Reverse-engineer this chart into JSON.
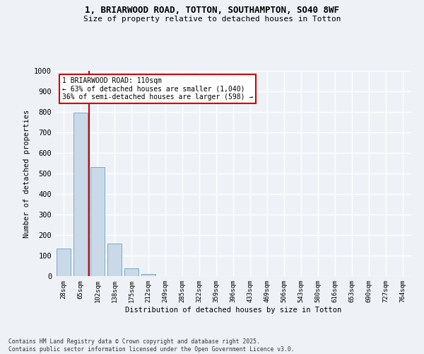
{
  "title_line1": "1, BRIARWOOD ROAD, TOTTON, SOUTHAMPTON, SO40 8WF",
  "title_line2": "Size of property relative to detached houses in Totton",
  "xlabel": "Distribution of detached houses by size in Totton",
  "ylabel": "Number of detached properties",
  "categories": [
    "28sqm",
    "65sqm",
    "102sqm",
    "138sqm",
    "175sqm",
    "212sqm",
    "249sqm",
    "285sqm",
    "322sqm",
    "359sqm",
    "396sqm",
    "433sqm",
    "469sqm",
    "506sqm",
    "543sqm",
    "580sqm",
    "616sqm",
    "653sqm",
    "690sqm",
    "727sqm",
    "764sqm"
  ],
  "values": [
    135,
    795,
    530,
    160,
    37,
    10,
    0,
    0,
    0,
    0,
    0,
    0,
    0,
    0,
    0,
    0,
    0,
    0,
    0,
    0,
    0
  ],
  "bar_color": "#c9d9e8",
  "bar_edge_color": "#7aaac8",
  "vline_color": "#cc0000",
  "annotation_text": "1 BRIARWOOD ROAD: 110sqm\n← 63% of detached houses are smaller (1,040)\n36% of semi-detached houses are larger (598) →",
  "ylim": [
    0,
    1000
  ],
  "yticks": [
    0,
    100,
    200,
    300,
    400,
    500,
    600,
    700,
    800,
    900,
    1000
  ],
  "background_color": "#eef2f7",
  "grid_color": "#ffffff",
  "footer_line1": "Contains HM Land Registry data © Crown copyright and database right 2025.",
  "footer_line2": "Contains public sector information licensed under the Open Government Licence v3.0."
}
